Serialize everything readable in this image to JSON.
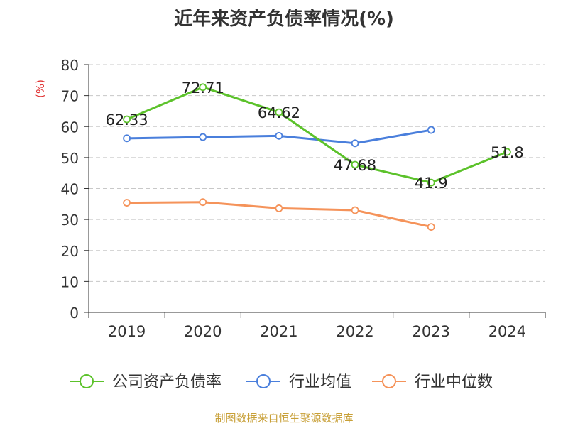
{
  "title": "近年来资产负债率情况(%)",
  "source": "制图数据来自恒生聚源数据库",
  "chart_data": {
    "type": "line",
    "title": "近年来资产负债率情况(%)",
    "ylabel": "(%)",
    "xlabel": "",
    "categories": [
      "2019",
      "2020",
      "2021",
      "2022",
      "2023",
      "2024"
    ],
    "ylim": [
      0,
      80
    ],
    "yticks": [
      0,
      10,
      20,
      30,
      40,
      50,
      60,
      70,
      80
    ],
    "grid": true,
    "legend_position": "bottom",
    "series": [
      {
        "name": "公司资产负债率",
        "color": "#5cc22b",
        "show_labels": true,
        "labels": [
          "62.33",
          "72.71",
          "64.62",
          "47.68",
          "41.9",
          "51.8"
        ],
        "values": [
          62.33,
          72.71,
          64.62,
          47.68,
          41.9,
          51.8
        ]
      },
      {
        "name": "行业均值",
        "color": "#4a7fdc",
        "show_labels": false,
        "values": [
          56.2,
          56.6,
          57.0,
          54.6,
          58.9,
          null
        ]
      },
      {
        "name": "行业中位数",
        "color": "#f5935a",
        "show_labels": false,
        "values": [
          35.4,
          35.6,
          33.6,
          33.0,
          27.6,
          null
        ]
      }
    ]
  }
}
